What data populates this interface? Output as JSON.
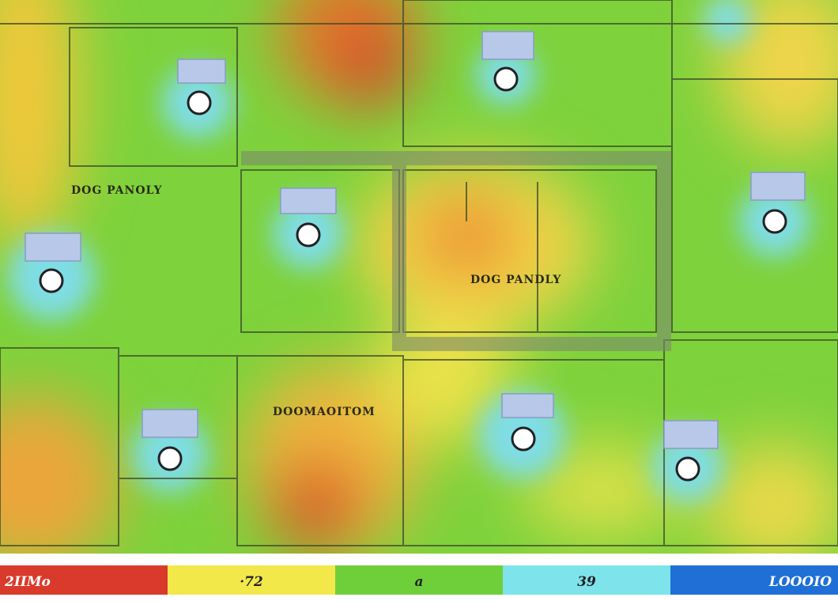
{
  "map": {
    "room_labels": [
      "DOG PANOLY",
      "DOOMAOITOM",
      "DOG PANDLY"
    ],
    "legend": [
      {
        "label": "2IIMo",
        "color": "#d93a2b"
      },
      {
        "label": "·72",
        "color": "#f3e84a"
      },
      {
        "label": "a",
        "color": "#6fcf3a"
      },
      {
        "label": "39",
        "color": "#7fe3ec"
      },
      {
        "label": "LOOOIO",
        "color": "#1f6fd6"
      }
    ]
  }
}
